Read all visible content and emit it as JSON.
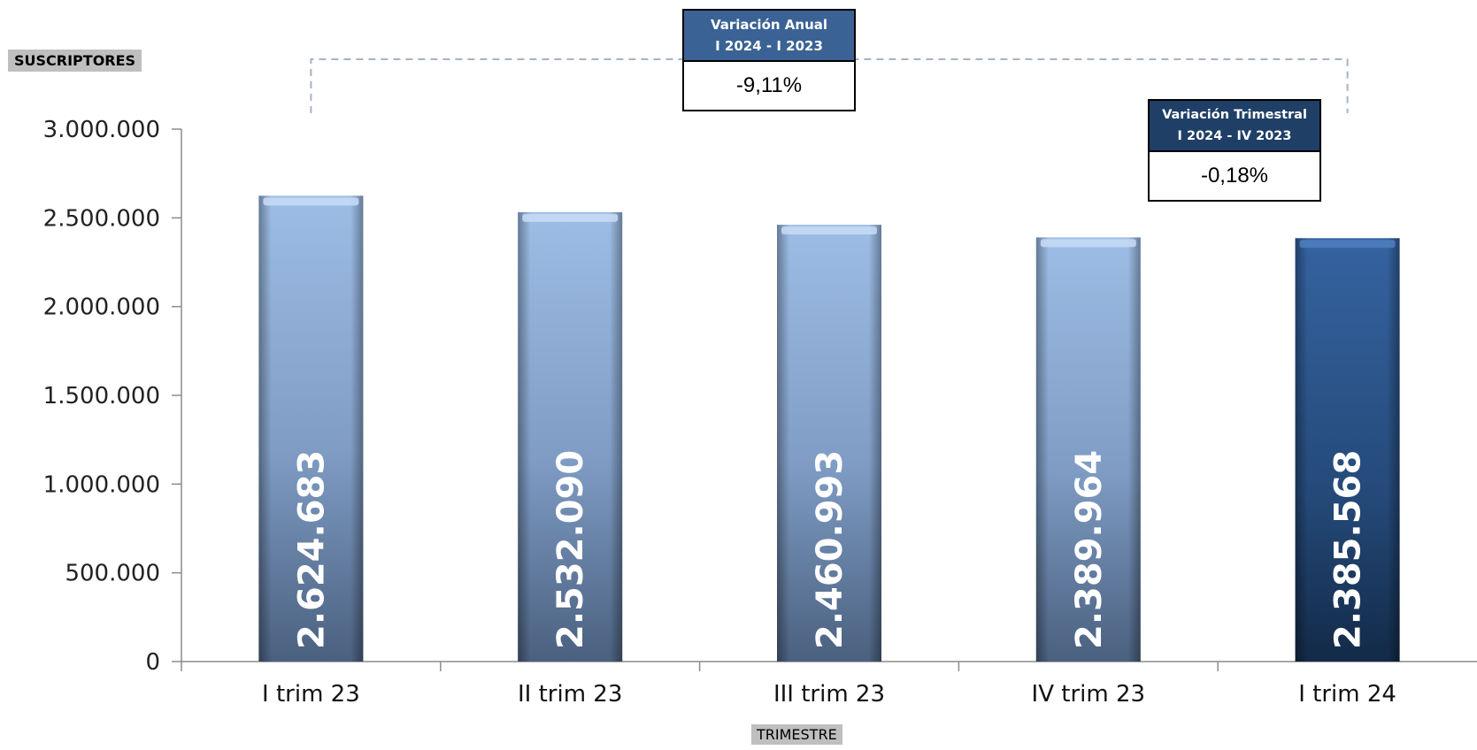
{
  "chart_data": {
    "type": "bar",
    "ylabel": "SUSCRIPTORES",
    "xlabel": "TRIMESTRE",
    "categories": [
      "I trim 23",
      "II trim 23",
      "III trim 23",
      "IV trim 23",
      "I trim 24"
    ],
    "values": [
      2624683,
      2532090,
      2460993,
      2389964,
      2385568
    ],
    "value_labels": [
      "2.624.683",
      "2.532.090",
      "2.460.993",
      "2.389.964",
      "2.385.568"
    ],
    "ylim": [
      0,
      3000000
    ],
    "yticks": [
      0,
      500000,
      1000000,
      1500000,
      2000000,
      2500000,
      3000000
    ],
    "ytick_labels": [
      "0",
      "500.000",
      "1.000.000",
      "1.500.000",
      "2.000.000",
      "2.500.000",
      "3.000.000"
    ],
    "grid": false,
    "colors": {
      "bar": "#8fb0db",
      "bar_highlight": "#2b5387"
    }
  },
  "annotations": {
    "annual": {
      "title_line1": "Variación Anual",
      "title_line2": "I 2024 - I 2023",
      "value": "-9,11%"
    },
    "quarterly": {
      "title_line1": "Variación Trimestral",
      "title_line2": "I 2024 - IV 2023",
      "value": "-0,18%"
    }
  }
}
